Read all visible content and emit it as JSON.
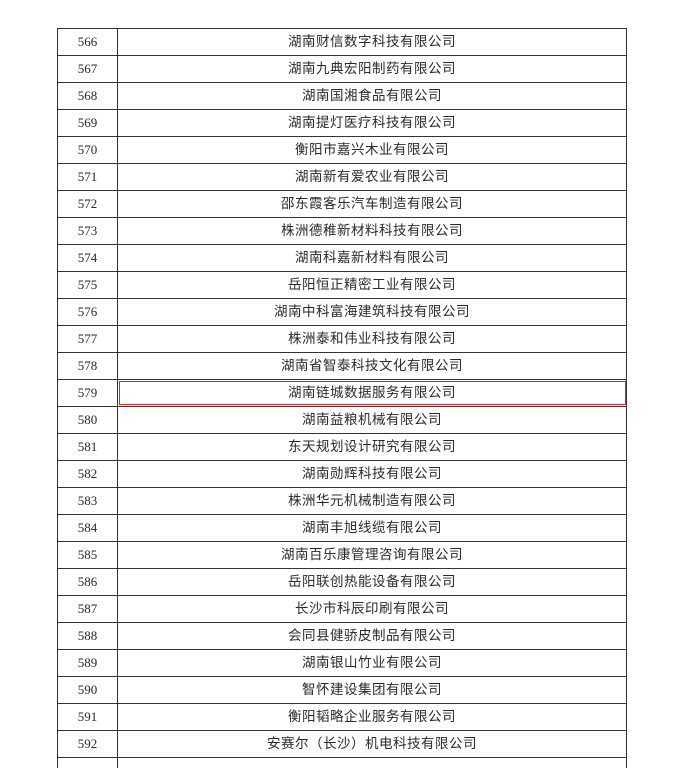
{
  "highlight_color": "#e02020",
  "highlighted_no": "579",
  "rows": [
    {
      "no": "566",
      "name": "湖南财信数字科技有限公司"
    },
    {
      "no": "567",
      "name": "湖南九典宏阳制药有限公司"
    },
    {
      "no": "568",
      "name": "湖南国湘食品有限公司"
    },
    {
      "no": "569",
      "name": "湖南提灯医疗科技有限公司"
    },
    {
      "no": "570",
      "name": "衡阳市嘉兴木业有限公司"
    },
    {
      "no": "571",
      "name": "湖南新有爱农业有限公司"
    },
    {
      "no": "572",
      "name": "邵东霞客乐汽车制造有限公司"
    },
    {
      "no": "573",
      "name": "株洲德稚新材料科技有限公司"
    },
    {
      "no": "574",
      "name": "湖南科嘉新材料有限公司"
    },
    {
      "no": "575",
      "name": "岳阳恒正精密工业有限公司"
    },
    {
      "no": "576",
      "name": "湖南中科富海建筑科技有限公司"
    },
    {
      "no": "577",
      "name": "株洲泰和伟业科技有限公司"
    },
    {
      "no": "578",
      "name": "湖南省智泰科技文化有限公司"
    },
    {
      "no": "579",
      "name": "湖南链城数据服务有限公司"
    },
    {
      "no": "580",
      "name": "湖南益粮机械有限公司"
    },
    {
      "no": "581",
      "name": "东天规划设计研究有限公司"
    },
    {
      "no": "582",
      "name": "湖南勋辉科技有限公司"
    },
    {
      "no": "583",
      "name": "株洲华元机械制造有限公司"
    },
    {
      "no": "584",
      "name": "湖南丰旭线缆有限公司"
    },
    {
      "no": "585",
      "name": "湖南百乐康管理咨询有限公司"
    },
    {
      "no": "586",
      "name": "岳阳联创热能设备有限公司"
    },
    {
      "no": "587",
      "name": "长沙市科辰印刷有限公司"
    },
    {
      "no": "588",
      "name": "会同县健骄皮制品有限公司"
    },
    {
      "no": "589",
      "name": "湖南银山竹业有限公司"
    },
    {
      "no": "590",
      "name": "智怀建设集团有限公司"
    },
    {
      "no": "591",
      "name": "衡阳韬略企业服务有限公司"
    },
    {
      "no": "592",
      "name": "安赛尔（长沙）机电科技有限公司"
    }
  ]
}
